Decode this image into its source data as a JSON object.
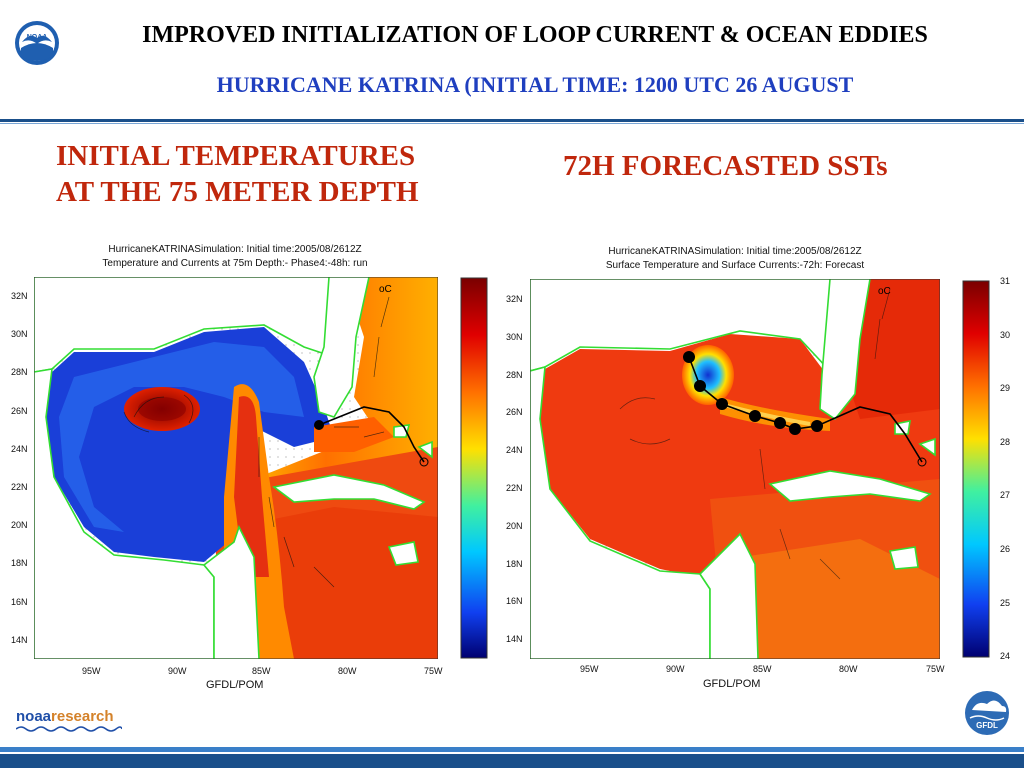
{
  "header": {
    "title": "IMPROVED INITIALIZATION OF LOOP CURRENT  & OCEAN EDDIES",
    "subtitle": "HURRICANE KATRINA (INITIAL TIME: 1200 UTC 26 AUGUST",
    "logo_text": "NOAA"
  },
  "left_panel": {
    "heading_line1": "INITIAL TEMPERATURES",
    "heading_line2": "AT  THE 75 METER DEPTH",
    "map_title_line1": "HurricaneKATRINASimulation: Initial time:2005/08/2612Z",
    "map_title_line2": "Temperature and Currents at 75m Depth:- Phase4:-48h:  run",
    "unit_label": "oC"
  },
  "right_panel": {
    "heading": "72H FORECASTED SSTs",
    "map_title_line1": "HurricaneKATRINASimulation: Initial time:2005/08/2612Z",
    "map_title_line2": "Surface Temperature and Surface Currents:-72h:  Forecast",
    "unit_label": "oC",
    "colorbar_ticks": [
      "31",
      "30",
      "29",
      "28",
      "27",
      "26",
      "25",
      "24"
    ]
  },
  "axes": {
    "lat_ticks": [
      "32N",
      "30N",
      "28N",
      "26N",
      "24N",
      "22N",
      "20N",
      "18N",
      "16N",
      "14N"
    ],
    "lon_ticks": [
      "95W",
      "90W",
      "85W",
      "80W",
      "75W"
    ],
    "xlabel": "GFDL/POM"
  },
  "footer": {
    "noaa_part": "noaa",
    "research_part": "research",
    "gfdl_text": "GFDL"
  },
  "colors": {
    "title": "#000000",
    "subtitle": "#1f3fbf",
    "heading": "#c0270c",
    "coast": "#33dd33",
    "rule": "#1a4f8a"
  }
}
